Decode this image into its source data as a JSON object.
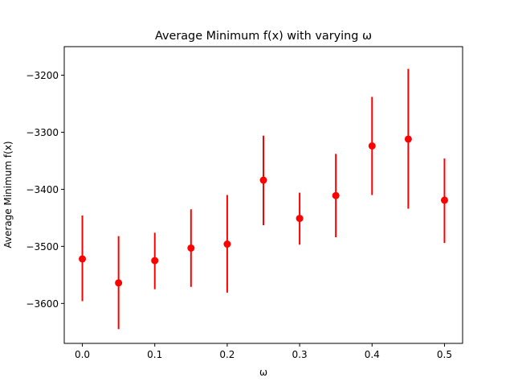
{
  "chart_data": {
    "type": "scatter",
    "title": "Average Minimum f(x) with varying ω",
    "xlabel": "ω",
    "ylabel": "Average Minimum f(x)",
    "xlim": [
      -0.025,
      0.525
    ],
    "ylim": [
      -3670,
      -3150
    ],
    "xticks": [
      0.0,
      0.1,
      0.2,
      0.3,
      0.4,
      0.5
    ],
    "xtick_labels": [
      "0.0",
      "0.1",
      "0.2",
      "0.3",
      "0.4",
      "0.5"
    ],
    "yticks": [
      -3600,
      -3500,
      -3400,
      -3300,
      -3200
    ],
    "ytick_labels": [
      "−3600",
      "−3500",
      "−3400",
      "−3300",
      "−3200"
    ],
    "grid": false,
    "legend": "none",
    "color": "#ff0000",
    "series": [
      {
        "x": [
          0.0,
          0.05,
          0.1,
          0.15,
          0.2,
          0.25,
          0.3,
          0.35,
          0.4,
          0.45,
          0.5
        ],
        "y": [
          -3522,
          -3564,
          -3525,
          -3503,
          -3496,
          -3384,
          -3451,
          -3411,
          -3324,
          -3312,
          -3419
        ],
        "err_low": [
          -3596,
          -3645,
          -3575,
          -3571,
          -3581,
          -3463,
          -3497,
          -3484,
          -3410,
          -3434,
          -3494
        ],
        "err_high": [
          -3446,
          -3482,
          -3476,
          -3435,
          -3410,
          -3306,
          -3406,
          -3338,
          -3238,
          -3189,
          -3346
        ]
      }
    ]
  }
}
